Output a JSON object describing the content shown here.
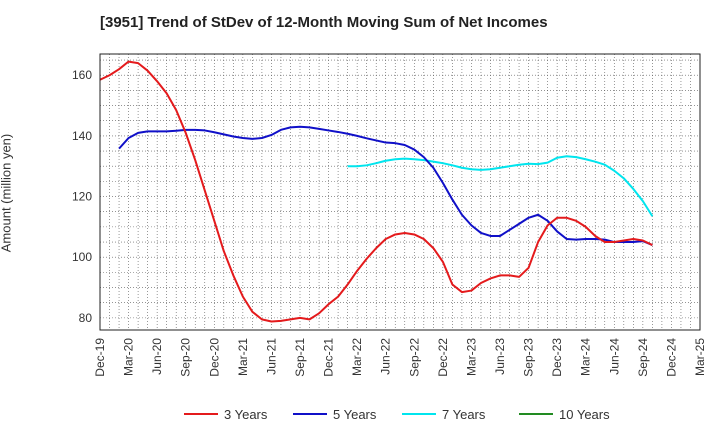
{
  "chart_data": {
    "type": "line",
    "title": "[3951]  Trend of StDev of 12-Month Moving Sum of Net Incomes",
    "xlabel": "",
    "ylabel": "Amount (million yen)",
    "x_tick_labels": [
      "Dec-19",
      "Mar-20",
      "Jun-20",
      "Sep-20",
      "Dec-20",
      "Mar-21",
      "Jun-21",
      "Sep-21",
      "Dec-21",
      "Mar-22",
      "Jun-22",
      "Sep-22",
      "Dec-22",
      "Mar-23",
      "Jun-23",
      "Sep-23",
      "Dec-23",
      "Mar-24",
      "Jun-24",
      "Sep-24",
      "Dec-24",
      "Mar-25"
    ],
    "y_ticks": [
      80,
      100,
      120,
      140,
      160
    ],
    "ylim": [
      76,
      167
    ],
    "grid": true,
    "legend_position": "bottom",
    "series": [
      {
        "name": "3 Years",
        "color": "#e41a1c",
        "values": [
          158.5,
          160,
          162,
          164.5,
          164,
          161.5,
          158,
          154,
          148.5,
          141,
          132,
          122,
          112,
          102,
          94,
          87,
          82,
          79.5,
          78.8,
          79,
          79.5,
          80,
          79.5,
          81.5,
          84.5,
          87,
          91,
          95.5,
          99.5,
          103,
          106,
          107.5,
          108,
          107.5,
          106,
          103,
          98.5,
          91,
          88.5,
          89,
          91.5,
          93,
          94,
          94,
          93.5,
          96.5,
          105,
          110.5,
          113,
          113,
          112,
          110,
          107,
          105,
          105,
          105.5,
          106,
          105.5,
          104
        ]
      },
      {
        "name": "5 Years",
        "color": "#1010c8",
        "values": [
          null,
          null,
          null,
          null,
          null,
          null,
          null,
          null,
          null,
          null,
          null,
          null,
          null,
          null,
          null,
          null,
          null,
          null,
          null,
          null,
          null,
          null,
          null,
          null,
          null,
          null,
          null,
          null,
          null,
          null,
          null,
          null,
          null,
          null,
          null,
          null,
          null,
          null,
          null,
          null,
          null,
          null,
          null,
          null,
          null,
          null,
          null,
          null,
          null,
          null,
          null,
          null,
          null,
          null,
          null,
          null,
          null,
          null,
          null
        ]
      },
      {
        "name": "7 Years",
        "color": "#00e5ee",
        "values": [
          null,
          null,
          null,
          null,
          null,
          null,
          null,
          null,
          null,
          null,
          null,
          null,
          null,
          null,
          null,
          null,
          null,
          null,
          null,
          null,
          null,
          null,
          null,
          null,
          null,
          null,
          130,
          130,
          130.3,
          131,
          131.8,
          132.3,
          132.5,
          132.3,
          132,
          131.5,
          131,
          130.3,
          129.5,
          129,
          128.8,
          129,
          129.5,
          130,
          130.5,
          130.8,
          130.7,
          131.2,
          132.8,
          133.3,
          133,
          132.3,
          131.5,
          130.5,
          128.5,
          126,
          122.5,
          118.5,
          113.5
        ]
      },
      {
        "name": "10 Years",
        "color": "#228b22",
        "values": []
      }
    ],
    "five_years_values": [
      null,
      null,
      135.8,
      139.3,
      141,
      141.5,
      141.5,
      141.5,
      141.7,
      142,
      142,
      141.8,
      141.2,
      140.5,
      139.8,
      139.3,
      139,
      139.3,
      140.3,
      142,
      142.8,
      143,
      142.8,
      142.3,
      141.8,
      141.3,
      140.7,
      140,
      139.2,
      138.5,
      137.8,
      137.6,
      137,
      135.5,
      133,
      129.5,
      124.5,
      119,
      114,
      110.5,
      108,
      107,
      107,
      109,
      111,
      113,
      114,
      112,
      108.5,
      106,
      105.8,
      106,
      106,
      105.8,
      105,
      105,
      105,
      105.3,
      104
    ]
  },
  "legend": {
    "items": [
      {
        "label": "3 Years",
        "color": "#e41a1c"
      },
      {
        "label": "5 Years",
        "color": "#1010c8"
      },
      {
        "label": "7 Years",
        "color": "#00e5ee"
      },
      {
        "label": "10 Years",
        "color": "#228b22"
      }
    ]
  }
}
